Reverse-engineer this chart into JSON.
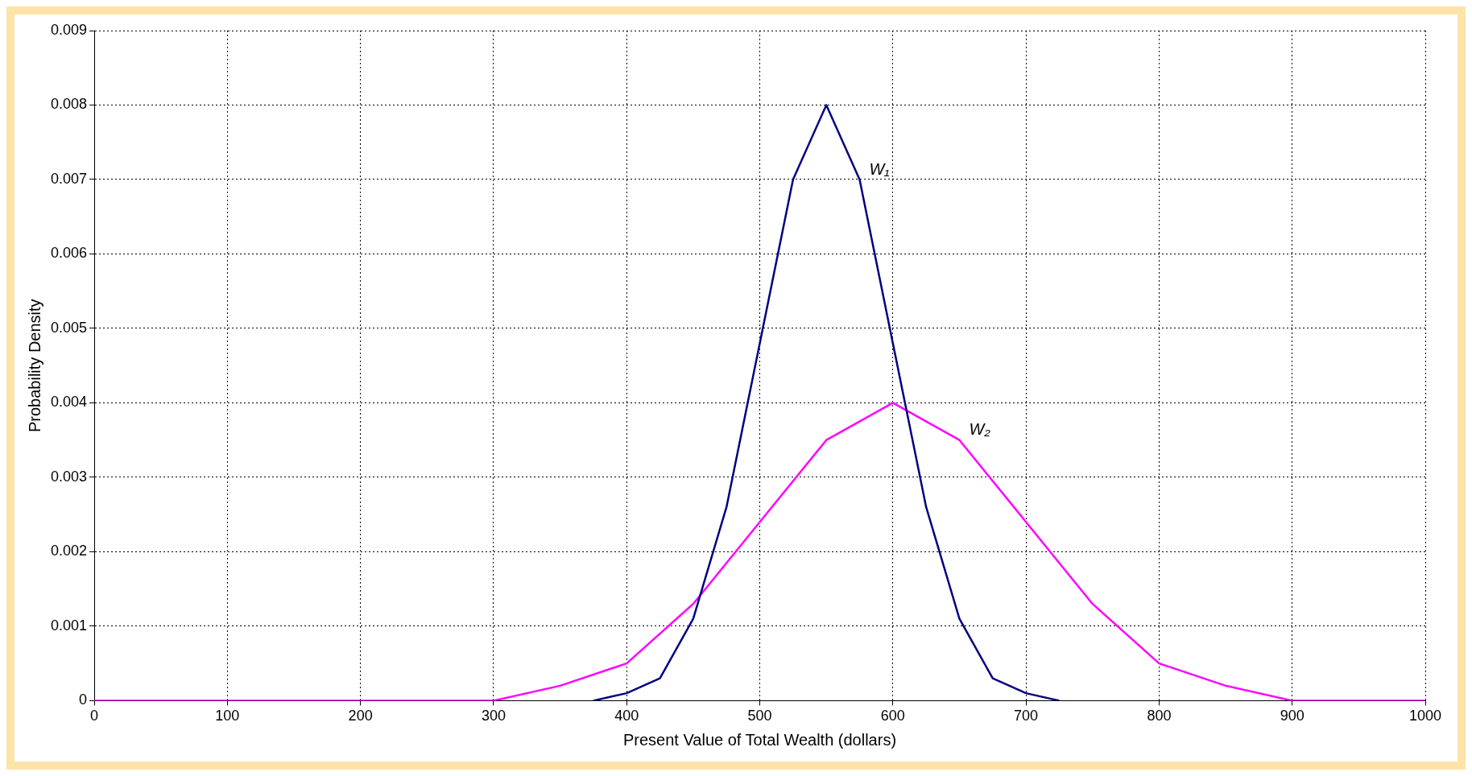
{
  "chart_data": {
    "type": "line",
    "xlabel": "Present Value of Total Wealth (dollars)",
    "ylabel": "Probability Density",
    "xlim": [
      0,
      1000
    ],
    "xticks": [
      0,
      100,
      200,
      300,
      400,
      500,
      600,
      700,
      800,
      900,
      1000
    ],
    "ylim": [
      0,
      0.009
    ],
    "yticks": [
      0,
      0.001,
      0.002,
      0.003,
      0.004,
      0.005,
      0.006,
      0.007,
      0.008,
      0.009
    ],
    "grid": true,
    "legend": false,
    "marker": "none",
    "line_style": "solid",
    "series": [
      {
        "name": "W₁",
        "color": "#000080",
        "x": [
          375,
          400,
          425,
          450,
          475,
          500,
          525,
          550,
          575,
          600,
          625,
          650,
          675,
          700,
          725
        ],
        "values": [
          0,
          0.0001,
          0.0003,
          0.0011,
          0.0026,
          0.0048,
          0.007,
          0.008,
          0.007,
          0.0048,
          0.0026,
          0.0011,
          0.0003,
          0.0001,
          0
        ]
      },
      {
        "name": "W₂",
        "color": "#ff00ff",
        "x": [
          0,
          100,
          200,
          250,
          300,
          350,
          400,
          450,
          500,
          550,
          600,
          650,
          700,
          750,
          800,
          850,
          900,
          950,
          1000
        ],
        "values": [
          0,
          0,
          0,
          0,
          0,
          0.0002,
          0.0005,
          0.0013,
          0.0024,
          0.0035,
          0.004,
          0.0035,
          0.0024,
          0.0013,
          0.0005,
          0.0002,
          0,
          0,
          0
        ]
      }
    ]
  }
}
